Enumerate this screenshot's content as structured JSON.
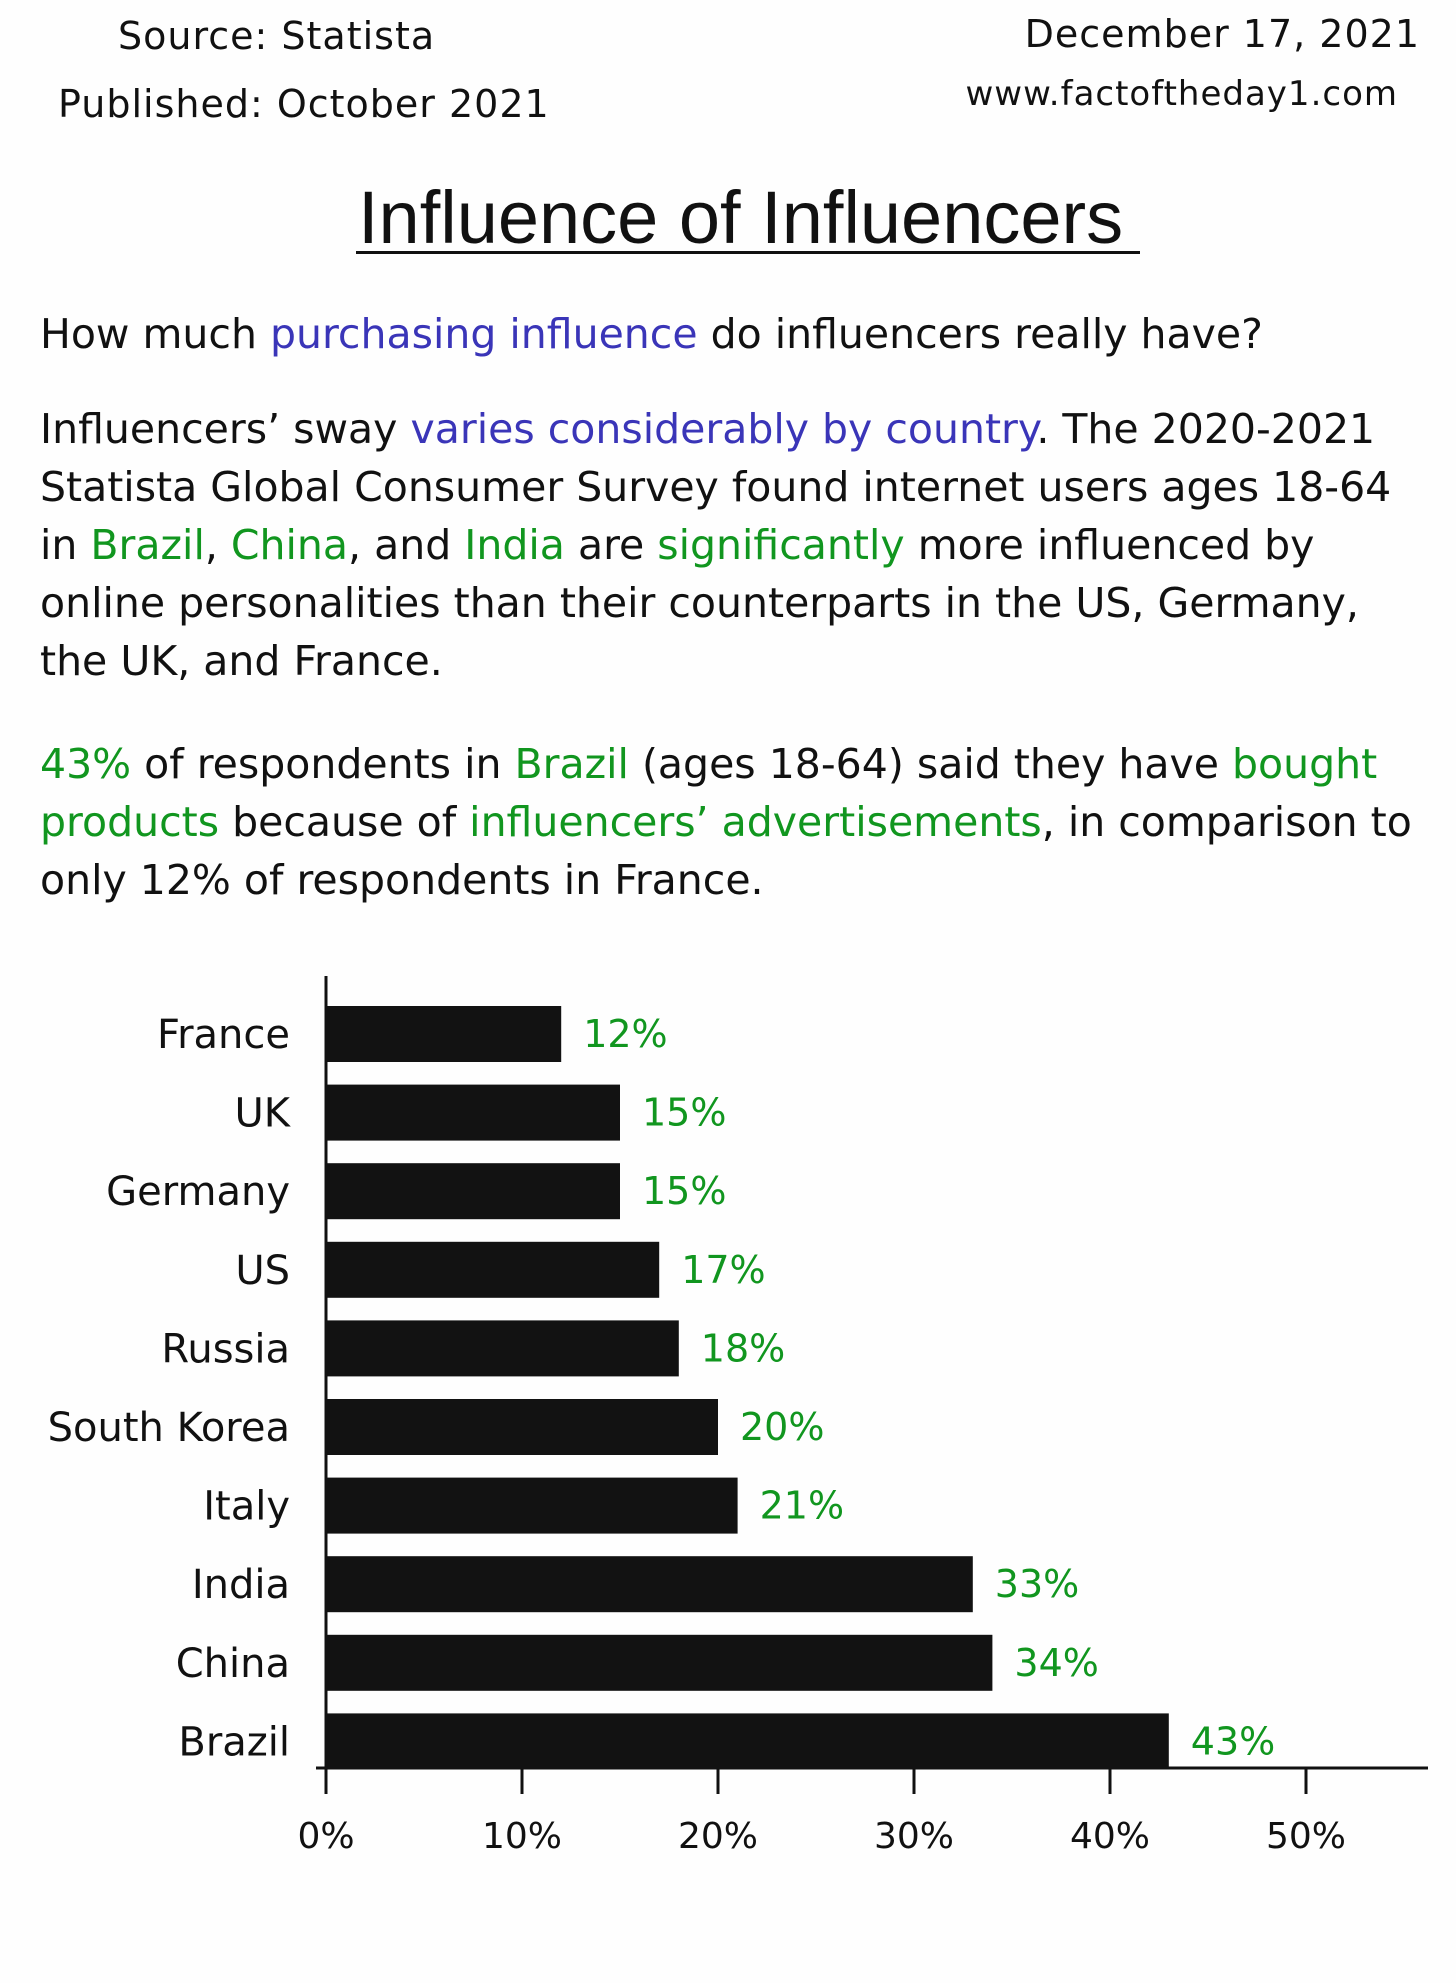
{
  "header": {
    "source": "Source: Statista",
    "published": "Published: October 2021",
    "date": "December 17, 2021",
    "website": "www.factoftheday1.com"
  },
  "title": "Influence of Influencers",
  "question": {
    "before": "How much ",
    "highlight": "purchasing influence",
    "after": " do influencers really have?"
  },
  "paragraph1": {
    "t1": "Influencers’ sway ",
    "h1": "varies considerably by country",
    "t2": ". The 2020-2021 Statista Global Consumer Survey found internet users ages 18-64 in ",
    "g1": "Brazil",
    "t3": ", ",
    "g2": "China",
    "t4": ", and ",
    "g3": "India",
    "t5": " are ",
    "g4": "significantly",
    "t6": " more influenced by online personalities than their counterparts in the US, Germany, the UK, and France."
  },
  "paragraph2": {
    "g1": "43%",
    "t1": " of respondents in ",
    "g2": "Brazil",
    "t2": " (ages 18-64) said they have ",
    "g3": "bought products",
    "t3": " because of ",
    "g4": "influencers’ advertisements",
    "t4": ", in comparison to only 12% of respondents in France."
  },
  "colors": {
    "bar": "#121212",
    "value_label": "#11961f",
    "highlight_blue": "#3a35b8",
    "highlight_green": "#11961f"
  },
  "chart_data": {
    "type": "bar",
    "orientation": "horizontal",
    "categories": [
      "France",
      "UK",
      "Germany",
      "US",
      "Russia",
      "South Korea",
      "Italy",
      "India",
      "China",
      "Brazil"
    ],
    "values": [
      12,
      15,
      15,
      17,
      18,
      20,
      21,
      33,
      34,
      43
    ],
    "value_labels": [
      "12%",
      "15%",
      "15%",
      "17%",
      "18%",
      "20%",
      "21%",
      "33%",
      "34%",
      "43%"
    ],
    "xlim": [
      0,
      50
    ],
    "x_ticks": [
      0,
      10,
      20,
      30,
      40,
      50
    ],
    "x_tick_labels": [
      "0%",
      "10%",
      "20%",
      "30%",
      "40%",
      "50%"
    ],
    "grid": false
  }
}
